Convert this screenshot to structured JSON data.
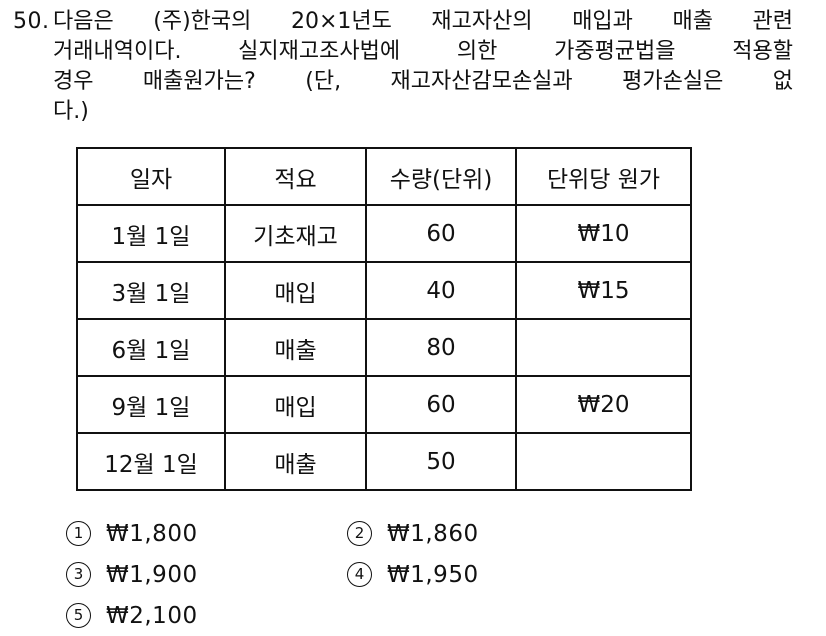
{
  "question": {
    "number": "50.",
    "lines": [
      "다음은 (주)한국의 20×1년도 재고자산의 매입과 매출 관련",
      "거래내역이다. 실지재고조사법에 의한 가중평균법을 적용할",
      "경우 매출원가는? (단, 재고자산감모손실과 평가손실은 없",
      "다.)"
    ]
  },
  "table": {
    "headers": [
      "일자",
      "적요",
      "수량(단위)",
      "단위당 원가"
    ],
    "rows": [
      [
        "1월 1일",
        "기초재고",
        "60",
        "₩10"
      ],
      [
        "3월 1일",
        "매입",
        "40",
        "₩15"
      ],
      [
        "6월 1일",
        "매출",
        "80",
        ""
      ],
      [
        "9월 1일",
        "매입",
        "60",
        "₩20"
      ],
      [
        "12월 1일",
        "매출",
        "50",
        ""
      ]
    ]
  },
  "choices": [
    {
      "marker": "1",
      "label": "₩1,800"
    },
    {
      "marker": "2",
      "label": "₩1,860"
    },
    {
      "marker": "3",
      "label": "₩1,900"
    },
    {
      "marker": "4",
      "label": "₩1,950"
    },
    {
      "marker": "5",
      "label": "₩2,100"
    }
  ],
  "colors": {
    "text": "#111111",
    "border": "#111111",
    "background": "#ffffff"
  }
}
